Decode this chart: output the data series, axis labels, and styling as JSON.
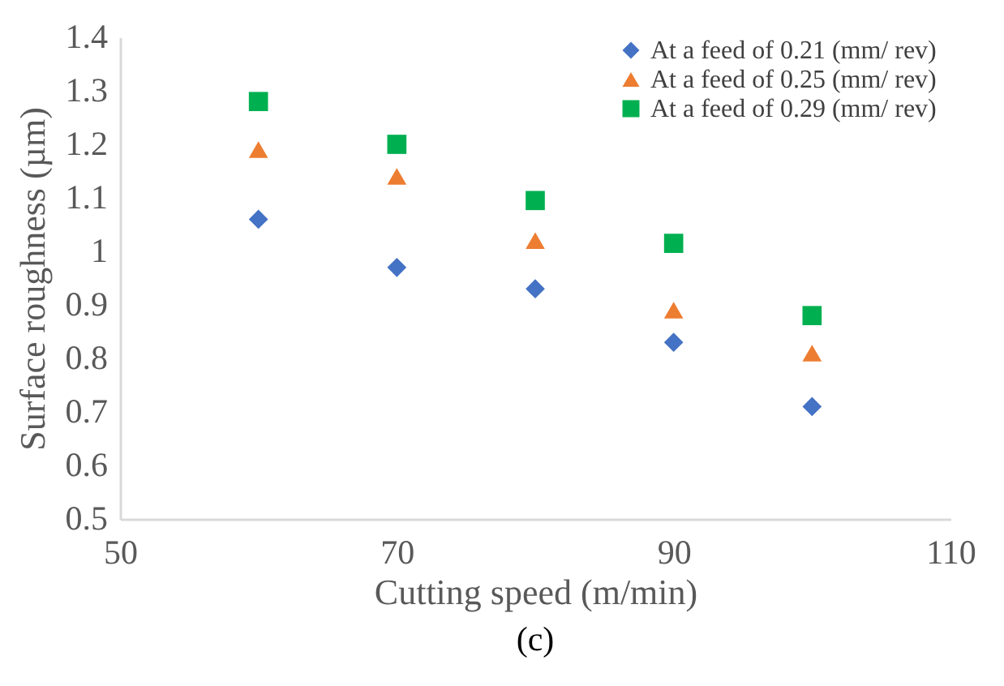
{
  "chart_data": {
    "type": "scatter",
    "xlabel": "Cutting speed (m/min)",
    "ylabel": "Surface roughness (µm)",
    "annotations": [
      "(c)"
    ],
    "x": [
      60,
      70,
      80,
      90,
      100
    ],
    "series": [
      {
        "name": "At a feed  of  0.21 (mm/ rev)",
        "color": "#4472c4",
        "marker": "diamond",
        "values": [
          1.06,
          0.97,
          0.93,
          0.83,
          0.71
        ]
      },
      {
        "name": "At a feed  of  0.25 (mm/ rev)",
        "color": "#ed7d31",
        "marker": "triangle",
        "values": [
          1.19,
          1.14,
          1.02,
          0.89,
          0.81
        ]
      },
      {
        "name": "At a feed  of  0.29 (mm/ rev)",
        "color": "#00b050",
        "marker": "square",
        "values": [
          1.28,
          1.2,
          1.095,
          1.015,
          0.88
        ]
      }
    ],
    "xlim": [
      50,
      110
    ],
    "xticks": [
      50,
      70,
      90,
      110
    ],
    "ylim": [
      0.5,
      1.4
    ],
    "yticks": [
      0.5,
      0.6,
      0.7,
      0.8,
      0.9,
      {
        "value": 1,
        "label": "1"
      },
      1.1,
      1.2,
      1.3,
      1.4
    ],
    "grid": false,
    "legend": "top right"
  }
}
